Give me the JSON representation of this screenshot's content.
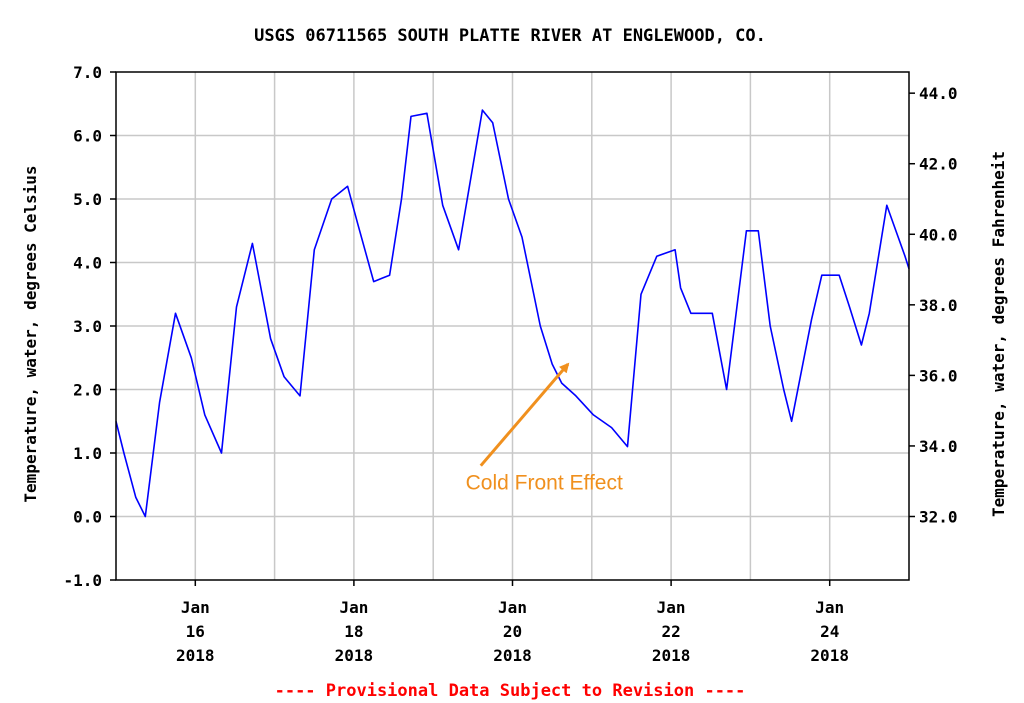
{
  "chart_data": {
    "type": "line",
    "title": "USGS 06711565 SOUTH PLATTE RIVER AT ENGLEWOOD, CO.",
    "ylabel": "Temperature, water, degrees Celsius",
    "ylabel_right": "Temperature, water, degrees Fahrenheit",
    "ylim": [
      -1.0,
      7.0
    ],
    "y_ticks": [
      "7.0",
      "6.0",
      "5.0",
      "4.0",
      "3.0",
      "2.0",
      "1.0",
      "0.0",
      "-1.0"
    ],
    "y_ticks_right": [
      "44.0",
      "42.0",
      "40.0",
      "38.0",
      "36.0",
      "34.0",
      "32.0"
    ],
    "xlim": [
      15.0,
      25.0
    ],
    "x_ticks": [
      {
        "line1": "Jan",
        "line2": "16",
        "line3": "2018"
      },
      {
        "line1": "Jan",
        "line2": "18",
        "line3": "2018"
      },
      {
        "line1": "Jan",
        "line2": "20",
        "line3": "2018"
      },
      {
        "line1": "Jan",
        "line2": "22",
        "line3": "2018"
      },
      {
        "line1": "Jan",
        "line2": "24",
        "line3": "2018"
      }
    ],
    "grid": true,
    "series": [
      {
        "color": "#0000ff",
        "x": [
          15.0,
          15.1,
          15.25,
          15.37,
          15.55,
          15.75,
          15.95,
          16.12,
          16.33,
          16.52,
          16.72,
          16.95,
          17.12,
          17.32,
          17.5,
          17.72,
          17.92,
          18.05,
          18.25,
          18.45,
          18.6,
          18.72,
          18.92,
          19.12,
          19.32,
          19.62,
          19.75,
          19.95,
          20.12,
          20.35,
          20.5,
          20.62,
          20.8,
          21.02,
          21.25,
          21.45,
          21.62,
          21.82,
          22.05,
          22.12,
          22.25,
          22.52,
          22.7,
          22.95,
          23.1,
          23.25,
          23.42,
          23.52,
          23.77,
          23.9,
          24.12,
          24.25,
          24.4,
          24.5,
          24.72,
          24.95,
          25.0
        ],
        "y": [
          1.5,
          1.0,
          0.3,
          0.0,
          1.8,
          3.2,
          2.5,
          1.6,
          1.0,
          3.3,
          4.3,
          2.8,
          2.2,
          1.9,
          4.2,
          5.0,
          5.2,
          4.6,
          3.7,
          3.8,
          5.0,
          6.3,
          6.35,
          4.9,
          4.2,
          6.4,
          6.2,
          5.0,
          4.4,
          3.0,
          2.4,
          2.1,
          1.9,
          1.6,
          1.4,
          1.1,
          3.5,
          4.1,
          4.2,
          3.6,
          3.2,
          3.2,
          2.0,
          4.5,
          4.5,
          3.0,
          2.0,
          1.5,
          3.1,
          3.8,
          3.8,
          3.3,
          2.7,
          3.2,
          4.9,
          4.1,
          3.9
        ]
      }
    ],
    "annotations": [
      {
        "text": "Cold Front Effect",
        "color": "#f0901e",
        "x": 20.4,
        "y": 0.3,
        "arrow_from": [
          19.6,
          0.8
        ],
        "arrow_to": [
          20.7,
          2.4
        ]
      }
    ],
    "footer": "---- Provisional Data Subject to Revision ----",
    "footer_color": "#ff0000"
  }
}
